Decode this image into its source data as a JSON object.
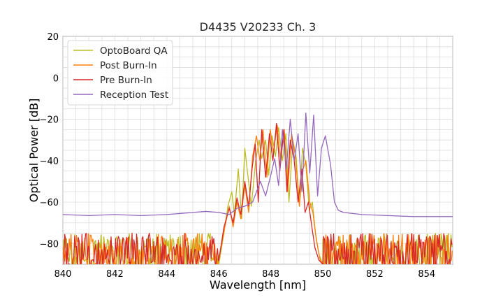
{
  "chart_data": {
    "type": "line",
    "title": "D4435 V20233 Ch. 3",
    "xlabel": "Wavelength [nm]",
    "ylabel": "Optical Power [dB]",
    "xlim": [
      840,
      855
    ],
    "ylim": [
      -90,
      20
    ],
    "x_ticks": [
      840,
      842,
      844,
      846,
      848,
      850,
      852,
      854
    ],
    "x_tick_labels": [
      "840",
      "842",
      "844",
      "846",
      "848",
      "850",
      "852",
      "854"
    ],
    "y_ticks": [
      -80,
      -60,
      -40,
      -20,
      0,
      20
    ],
    "y_tick_labels": [
      "−80",
      "−60",
      "−40",
      "−20",
      "0",
      "20"
    ],
    "grid": true,
    "legend_position": "top-left",
    "series": [
      {
        "name": "OptoBoard QA",
        "color": "#bcbd22",
        "noise_floor": -82,
        "x": [
          846.0,
          846.2,
          846.35,
          846.5,
          846.6,
          846.75,
          846.88,
          847.0,
          847.1,
          847.25,
          847.42,
          847.55,
          847.65,
          847.8,
          847.92,
          848.05,
          848.18,
          848.3,
          848.45,
          848.58,
          848.7,
          848.85,
          848.98,
          849.1,
          849.22,
          849.35,
          849.48,
          849.6,
          849.72,
          849.85,
          850.0
        ],
        "y": [
          -90,
          -75,
          -62,
          -55,
          -66,
          -44,
          -68,
          -34,
          -45,
          -62,
          -40,
          -30,
          -39,
          -30,
          -47,
          -28,
          -38,
          -24,
          -40,
          -27,
          -60,
          -30,
          -39,
          -62,
          -34,
          -42,
          -64,
          -60,
          -75,
          -85,
          -90
        ]
      },
      {
        "name": "Post Burn-In",
        "color": "#ff7f0e",
        "noise_floor": -82,
        "x": [
          846.0,
          846.2,
          846.4,
          846.55,
          846.7,
          846.85,
          847.0,
          847.15,
          847.3,
          847.45,
          847.58,
          847.7,
          847.85,
          847.98,
          848.1,
          848.25,
          848.38,
          848.52,
          848.65,
          848.8,
          848.95,
          849.1,
          849.22,
          849.35,
          849.5,
          849.62,
          849.75,
          849.9,
          850.05
        ],
        "y": [
          -88,
          -74,
          -62,
          -72,
          -60,
          -68,
          -52,
          -65,
          -38,
          -28,
          -40,
          -25,
          -48,
          -25,
          -36,
          -23,
          -40,
          -25,
          -55,
          -27,
          -38,
          -62,
          -45,
          -40,
          -60,
          -65,
          -78,
          -88,
          -90
        ]
      },
      {
        "name": "Pre Burn-In",
        "color": "#d62728",
        "noise_floor": -82,
        "x": [
          846.0,
          846.2,
          846.4,
          846.55,
          846.7,
          846.85,
          847.0,
          847.15,
          847.28,
          847.4,
          847.52,
          847.65,
          847.8,
          847.95,
          848.08,
          848.22,
          848.35,
          848.5,
          848.62,
          848.75,
          848.9,
          849.05,
          849.2,
          849.32,
          849.45,
          849.58,
          849.7,
          849.85,
          850.0
        ],
        "y": [
          -88,
          -72,
          -63,
          -70,
          -58,
          -66,
          -50,
          -62,
          -44,
          -32,
          -60,
          -25,
          -48,
          -27,
          -40,
          -22,
          -45,
          -25,
          -55,
          -30,
          -40,
          -60,
          -44,
          -65,
          -60,
          -72,
          -82,
          -88,
          -90
        ]
      },
      {
        "name": "Reception Test",
        "color": "#9467bd",
        "noise_floor": null,
        "x": [
          840.0,
          841.0,
          842.0,
          843.0,
          844.0,
          845.0,
          845.5,
          846.0,
          846.4,
          846.7,
          847.0,
          847.3,
          847.6,
          847.8,
          848.0,
          848.15,
          848.3,
          848.45,
          848.6,
          848.75,
          848.9,
          849.05,
          849.2,
          849.35,
          849.5,
          849.65,
          849.8,
          849.95,
          850.1,
          850.3,
          850.45,
          850.6,
          850.8,
          851.5,
          852.5,
          853.5,
          854.5,
          855.0
        ],
        "y": [
          -66,
          -66.5,
          -66,
          -66.5,
          -66,
          -65,
          -64.5,
          -65,
          -66,
          -63,
          -62,
          -60,
          -50,
          -57,
          -47,
          -39,
          -52,
          -25,
          -44,
          -20,
          -40,
          -27,
          -55,
          -17,
          -46,
          -18,
          -57,
          -34,
          -28,
          -42,
          -60,
          -64,
          -65,
          -66,
          -66.5,
          -67,
          -67,
          -67
        ]
      }
    ]
  }
}
